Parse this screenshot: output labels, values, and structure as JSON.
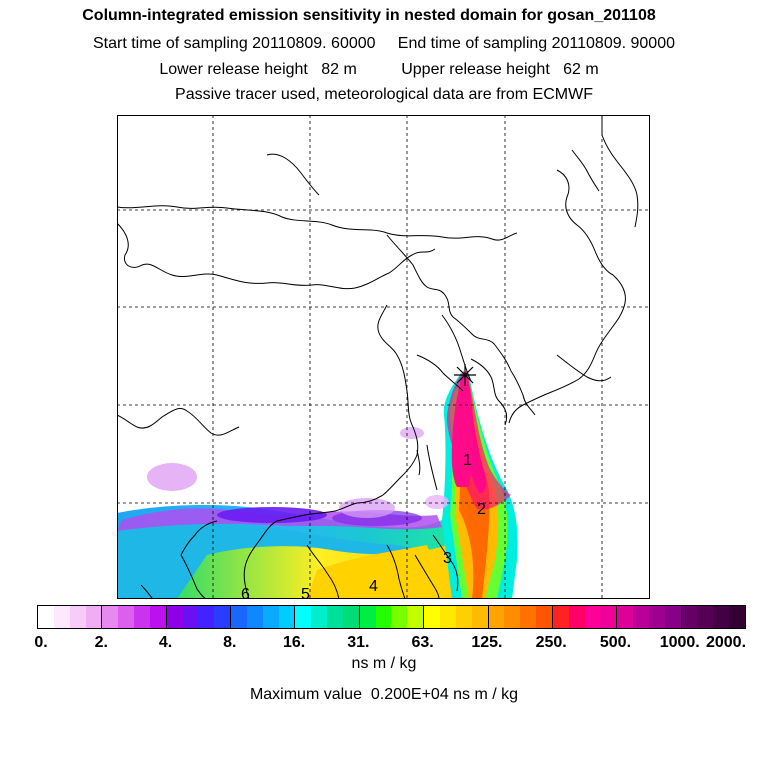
{
  "header": {
    "title": "Column-integrated emission sensitivity in nested domain for gosan_201108",
    "sampling": "Start time of sampling 20110809. 60000     End time of sampling 20110809. 90000",
    "release": "Lower release height   82 m          Upper release height   62 m",
    "model": "Passive tracer used, meteorological data are from ECMWF"
  },
  "map": {
    "receptor_marker": "star-marker",
    "day_labels": [
      "1",
      "2",
      "3",
      "4",
      "5",
      "6"
    ]
  },
  "colorbar": {
    "tick_labels": [
      "0.",
      "2.",
      "4.",
      "8.",
      "16.",
      "31.",
      "63.",
      "125.",
      "250.",
      "500.",
      "1000.",
      "2000."
    ],
    "segments": [
      [
        "#ffffff",
        "#fde8fd",
        "#f7ccf8",
        "#f0adf5"
      ],
      [
        "#e889f1",
        "#dc5fee",
        "#cc33ee",
        "#bb11ee"
      ],
      [
        "#8d00e8",
        "#6a11f2",
        "#4422ff",
        "#2b3cff"
      ],
      [
        "#1a66ff",
        "#0f88ff",
        "#09aaff",
        "#00ccff"
      ],
      [
        "#00ffff",
        "#00eecc",
        "#00e099",
        "#00dd77"
      ],
      [
        "#00ee44",
        "#22ff00",
        "#77ff00",
        "#c4ff00"
      ],
      [
        "#ffff00",
        "#ffe800",
        "#ffd000",
        "#ffbb00"
      ],
      [
        "#ffa300",
        "#ff8d00",
        "#ff7200",
        "#ff5500"
      ],
      [
        "#ff2222",
        "#ff0066",
        "#ff0099",
        "#ee0099"
      ],
      [
        "#dd0099",
        "#bb0099",
        "#a00090",
        "#880088"
      ],
      [
        "#660066",
        "#550055",
        "#440044",
        "#330033"
      ]
    ],
    "unit": "ns m / kg",
    "max_value_text": "Maximum value  0.200E+04 ns m / kg"
  }
}
